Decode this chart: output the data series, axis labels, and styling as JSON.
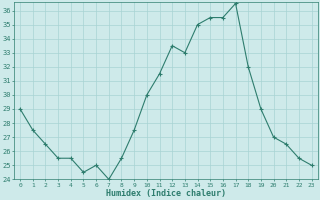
{
  "x": [
    0,
    1,
    2,
    3,
    4,
    5,
    6,
    7,
    8,
    9,
    10,
    11,
    12,
    13,
    14,
    15,
    16,
    17,
    18,
    19,
    20,
    21,
    22,
    23
  ],
  "y": [
    29,
    27.5,
    26.5,
    25.5,
    25.5,
    24.5,
    25,
    24,
    25.5,
    27.5,
    30,
    31.5,
    33.5,
    33,
    35,
    35.5,
    35.5,
    36.5,
    32,
    29,
    27,
    26.5,
    25.5,
    25
  ],
  "line_color": "#2e7d6e",
  "marker": "+",
  "marker_size": 3,
  "bg_color": "#ceeaea",
  "grid_color": "#a8d4d4",
  "xlabel": "Humidex (Indice chaleur)",
  "ylim": [
    24,
    36.6
  ],
  "xlim": [
    -0.5,
    23.5
  ],
  "yticks": [
    24,
    25,
    26,
    27,
    28,
    29,
    30,
    31,
    32,
    33,
    34,
    35,
    36
  ],
  "xticks": [
    0,
    1,
    2,
    3,
    4,
    5,
    6,
    7,
    8,
    9,
    10,
    11,
    12,
    13,
    14,
    15,
    16,
    17,
    18,
    19,
    20,
    21,
    22,
    23
  ]
}
